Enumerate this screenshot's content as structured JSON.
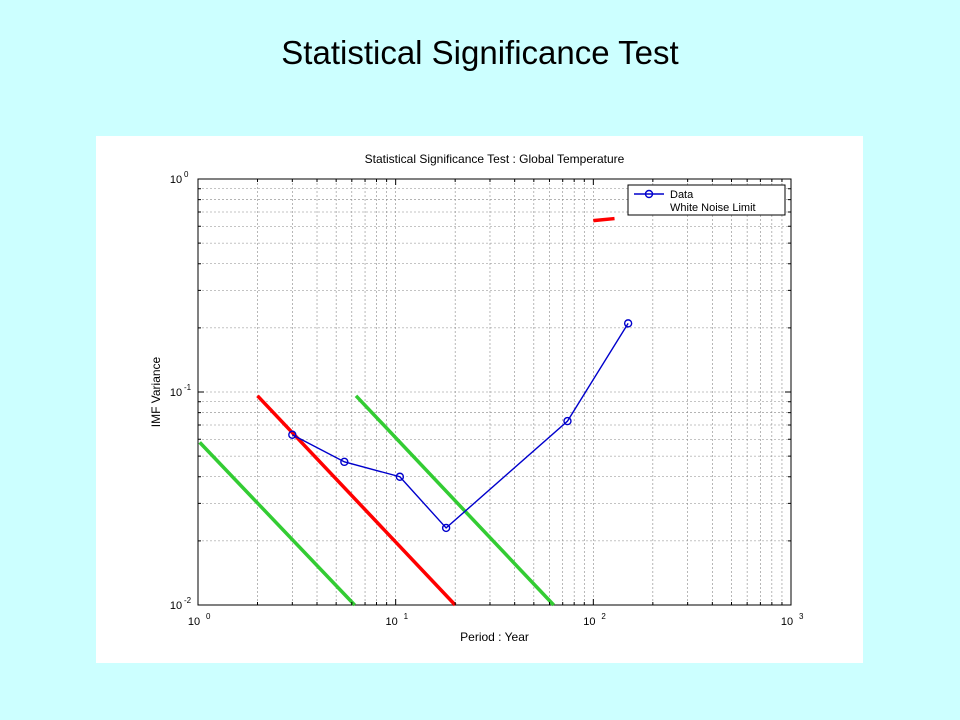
{
  "slide": {
    "title": "Statistical Significance Test"
  },
  "chart_data": {
    "type": "line",
    "title": "Statistical Significance Test : Global Temperature",
    "xlabel": "Period : Year",
    "ylabel": "IMF Variance",
    "xscale": "log",
    "yscale": "log",
    "xlim": [
      1,
      1000
    ],
    "ylim": [
      0.01,
      1
    ],
    "grid": true,
    "legend_position": "top-right",
    "x_ticks": [
      {
        "base": "10",
        "exp": "0"
      },
      {
        "base": "10",
        "exp": "1"
      },
      {
        "base": "10",
        "exp": "2"
      },
      {
        "base": "10",
        "exp": "3"
      }
    ],
    "y_ticks": [
      {
        "base": "10",
        "exp": "-2"
      },
      {
        "base": "10",
        "exp": "-1"
      },
      {
        "base": "10",
        "exp": "0"
      }
    ],
    "series": [
      {
        "name": "Data",
        "color": "#0000cc",
        "marker": "circle",
        "x": [
          3.0,
          5.5,
          10.5,
          18.0,
          74.0,
          150.0
        ],
        "y": [
          0.063,
          0.047,
          0.04,
          0.023,
          0.073,
          0.21
        ]
      }
    ],
    "legend": [
      {
        "label": "Data",
        "color": "#0000cc",
        "marker": "circle"
      },
      {
        "label": "White Noise Limit",
        "color": "#cc0000",
        "marker": "none"
      }
    ],
    "reference_lines": [
      {
        "color": "#ff0000",
        "x": [
          2.0,
          20.0
        ],
        "y": [
          0.096,
          0.01
        ]
      },
      {
        "color": "#33cc33",
        "x": [
          1.02,
          6.2
        ],
        "y": [
          0.058,
          0.01
        ]
      },
      {
        "color": "#33cc33",
        "x": [
          6.3,
          63.0
        ],
        "y": [
          0.096,
          0.01
        ]
      }
    ],
    "extra_marks": [
      {
        "color": "#ff0000",
        "x": [
          100,
          128
        ],
        "y": [
          0.638,
          0.652
        ]
      }
    ]
  }
}
